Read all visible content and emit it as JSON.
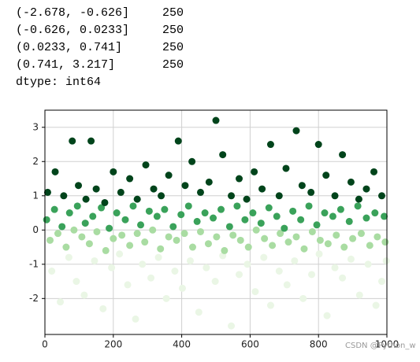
{
  "output": {
    "rows": [
      {
        "interval": "(-2.678, -0.626]",
        "count": 250
      },
      {
        "interval": "(-0.626, 0.0233]",
        "count": 250
      },
      {
        "interval": "(0.0233, 0.741]",
        "count": 250
      },
      {
        "interval": "(0.741, 3.217]",
        "count": 250
      }
    ],
    "dtype": "dtype: int64"
  },
  "watermark": "CSDN @Python_w",
  "chart_data": {
    "type": "scatter",
    "xlim": [
      0,
      1000
    ],
    "ylim": [
      -3.05,
      3.5
    ],
    "xticks": [
      0,
      200,
      400,
      600,
      800,
      1000
    ],
    "yticks": [
      -2,
      -1,
      0,
      1,
      2,
      3
    ],
    "grid": true,
    "series": [
      {
        "color": "#eaf6e5",
        "x": [
          20,
          45,
          70,
          92,
          115,
          145,
          170,
          195,
          218,
          242,
          265,
          285,
          310,
          332,
          355,
          380,
          402,
          425,
          450,
          472,
          498,
          520,
          545,
          568,
          592,
          615,
          640,
          660,
          685,
          708,
          730,
          755,
          780,
          802,
          825,
          848,
          870,
          895,
          920,
          945,
          968,
          985,
          998
        ],
        "values": [
          -1.2,
          -2.1,
          -0.8,
          -1.5,
          -1.9,
          -0.9,
          -2.3,
          -1.1,
          -0.7,
          -1.6,
          -2.6,
          -1.0,
          -1.4,
          -0.8,
          -2.0,
          -1.2,
          -1.7,
          -0.9,
          -2.4,
          -1.1,
          -1.5,
          -0.75,
          -2.8,
          -1.3,
          -1.0,
          -1.8,
          -0.8,
          -2.2,
          -1.2,
          -1.6,
          -0.9,
          -2.0,
          -1.3,
          -0.7,
          -2.5,
          -1.1,
          -1.4,
          -0.85,
          -1.9,
          -1.0,
          -2.2,
          -1.5,
          -0.9
        ]
      },
      {
        "color": "#a9dca2",
        "x": [
          15,
          38,
          62,
          85,
          108,
          130,
          152,
          178,
          200,
          225,
          248,
          270,
          292,
          315,
          338,
          362,
          385,
          408,
          432,
          455,
          478,
          502,
          525,
          550,
          572,
          595,
          618,
          642,
          665,
          688,
          712,
          735,
          758,
          782,
          805,
          828,
          852,
          875,
          900,
          925,
          950,
          972,
          995
        ],
        "values": [
          -0.3,
          -0.1,
          -0.5,
          0.0,
          -0.2,
          -0.4,
          -0.05,
          -0.6,
          -0.25,
          -0.15,
          -0.45,
          -0.1,
          -0.35,
          0.0,
          -0.55,
          -0.2,
          -0.3,
          -0.1,
          -0.5,
          -0.05,
          -0.4,
          -0.2,
          -0.6,
          -0.15,
          -0.3,
          -0.5,
          0.0,
          -0.25,
          -0.45,
          -0.1,
          -0.35,
          -0.2,
          -0.55,
          -0.05,
          -0.3,
          -0.4,
          -0.15,
          -0.5,
          -0.25,
          -0.1,
          -0.45,
          -0.2,
          -0.35
        ]
      },
      {
        "color": "#3aa25a",
        "x": [
          5,
          28,
          50,
          72,
          95,
          118,
          140,
          165,
          188,
          210,
          235,
          258,
          280,
          305,
          328,
          350,
          375,
          398,
          420,
          445,
          468,
          492,
          515,
          540,
          562,
          585,
          608,
          632,
          655,
          678,
          700,
          725,
          748,
          772,
          795,
          818,
          842,
          865,
          890,
          915,
          940,
          965,
          992
        ],
        "values": [
          0.3,
          0.6,
          0.1,
          0.5,
          0.7,
          0.2,
          0.4,
          0.65,
          0.05,
          0.5,
          0.3,
          0.7,
          0.15,
          0.55,
          0.4,
          0.6,
          0.1,
          0.45,
          0.7,
          0.25,
          0.5,
          0.35,
          0.6,
          0.1,
          0.7,
          0.3,
          0.5,
          0.2,
          0.65,
          0.4,
          0.05,
          0.55,
          0.3,
          0.7,
          0.15,
          0.5,
          0.4,
          0.6,
          0.25,
          0.7,
          0.35,
          0.5,
          0.4
        ]
      },
      {
        "color": "#00441b",
        "x": [
          8,
          30,
          55,
          80,
          98,
          120,
          135,
          150,
          175,
          200,
          222,
          248,
          270,
          295,
          318,
          340,
          362,
          390,
          410,
          430,
          455,
          480,
          500,
          520,
          545,
          568,
          590,
          612,
          635,
          660,
          685,
          705,
          735,
          752,
          778,
          800,
          822,
          848,
          870,
          895,
          918,
          940,
          962,
          985
        ],
        "values": [
          1.1,
          1.7,
          1.0,
          2.6,
          1.3,
          0.9,
          2.6,
          1.2,
          0.8,
          1.7,
          1.1,
          1.5,
          0.9,
          1.9,
          1.2,
          1.0,
          1.6,
          2.6,
          1.3,
          2.0,
          1.1,
          1.4,
          3.2,
          2.2,
          1.0,
          1.5,
          0.9,
          1.7,
          1.2,
          2.5,
          1.0,
          1.8,
          2.9,
          1.3,
          1.1,
          2.5,
          1.6,
          1.0,
          2.2,
          1.4,
          0.9,
          1.2,
          1.7,
          1.0
        ]
      }
    ]
  }
}
